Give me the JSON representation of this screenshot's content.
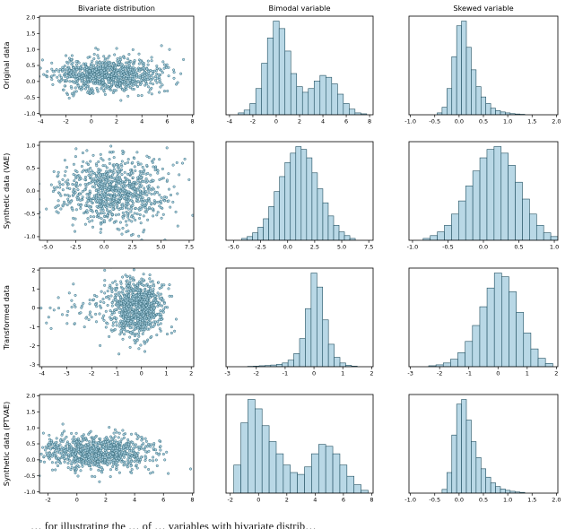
{
  "figure": {
    "caption_fragment": "… for illustrating the … of … variables with bivariate distrib…"
  },
  "chart_data": {
    "type": "subplot_grid",
    "grid": {
      "rows": 4,
      "cols": 3
    },
    "row_labels": [
      "Original data",
      "Synthetic data (VAE)",
      "Transformed data",
      "Synthetic data (PTVAE)"
    ],
    "col_titles": [
      "Bivariate distribution",
      "Bimodal variable",
      "Skewed variable"
    ],
    "palette": {
      "marker_fill": "#a9cfdf",
      "marker_edge": "#2f6475",
      "bar_fill": "#b9d8e6",
      "bar_edge": "#1f4e5f",
      "frame": "#000000"
    },
    "subplots": [
      {
        "name": "original-bivariate",
        "row": 0,
        "col": 0,
        "type": "scatter",
        "xlim": [
          -4.1,
          8.1
        ],
        "ylim": [
          -1.04,
          2.04
        ],
        "xtick_labels": [
          "-4",
          "-2",
          "0",
          "2",
          "4",
          "6",
          "8"
        ],
        "ytick_labels": [
          "-1.0",
          "-0.5",
          "0.0",
          "0.5",
          "1.0",
          "1.5",
          "2.0"
        ],
        "clusters": [
          {
            "cx": 1.2,
            "cy": 0.22,
            "sx": 2.1,
            "sy": 0.26,
            "n": 900
          }
        ],
        "seed": 11
      },
      {
        "name": "original-bimodal",
        "row": 0,
        "col": 1,
        "type": "hist",
        "xlim": [
          -4.3,
          8.3
        ],
        "xtick_labels": [
          "-4",
          "-2",
          "0",
          "2",
          "4",
          "6",
          "8"
        ],
        "bins": {
          "start": -3.25,
          "width": 0.5
        },
        "rel_heights": [
          0.02,
          0.05,
          0.12,
          0.28,
          0.55,
          0.82,
          1.0,
          0.92,
          0.68,
          0.44,
          0.3,
          0.24,
          0.28,
          0.36,
          0.42,
          0.4,
          0.33,
          0.22,
          0.12,
          0.06,
          0.02,
          0.01
        ]
      },
      {
        "name": "original-skewed",
        "row": 0,
        "col": 2,
        "type": "hist",
        "xlim": [
          -1.03,
          2.03
        ],
        "xtick_labels": [
          "-1.0",
          "-0.5",
          "0.0",
          "0.5",
          "1.0",
          "1.5",
          "2.0"
        ],
        "bins": {
          "start": -0.45,
          "width": 0.1
        },
        "rel_heights": [
          0.02,
          0.08,
          0.28,
          0.62,
          0.95,
          1.0,
          0.72,
          0.48,
          0.3,
          0.19,
          0.12,
          0.07,
          0.045,
          0.03,
          0.02,
          0.012,
          0.008,
          0.005
        ]
      },
      {
        "name": "vae-bivariate",
        "row": 1,
        "col": 0,
        "type": "scatter",
        "xlim": [
          -5.7,
          7.9
        ],
        "ylim": [
          -1.08,
          1.08
        ],
        "xtick_labels": [
          "-5.0",
          "-2.5",
          "0.0",
          "2.5",
          "5.0",
          "7.5"
        ],
        "ytick_labels": [
          "-1.0",
          "-0.5",
          "0.0",
          "0.5",
          "1.0"
        ],
        "clusters": [
          {
            "cx": 1.0,
            "cy": 0.0,
            "sx": 2.2,
            "sy": 0.36,
            "n": 900
          }
        ],
        "seed": 12
      },
      {
        "name": "vae-bimodal",
        "row": 1,
        "col": 1,
        "type": "hist",
        "xlim": [
          -5.7,
          7.9
        ],
        "xtick_labels": [
          "-5.0",
          "-2.5",
          "0.0",
          "2.5",
          "5.0",
          "7.5"
        ],
        "bins": {
          "start": -4.25,
          "width": 0.5
        },
        "rel_heights": [
          0.02,
          0.04,
          0.08,
          0.14,
          0.23,
          0.36,
          0.52,
          0.68,
          0.83,
          0.93,
          1.0,
          0.97,
          0.88,
          0.72,
          0.55,
          0.4,
          0.26,
          0.16,
          0.09,
          0.05,
          0.02
        ]
      },
      {
        "name": "vae-skewed",
        "row": 1,
        "col": 2,
        "type": "hist",
        "xlim": [
          -1.05,
          1.05
        ],
        "xtick_labels": [
          "-1.0",
          "-0.5",
          "0.0",
          "0.5",
          "1.0"
        ],
        "bins": {
          "start": -0.85,
          "width": 0.1
        },
        "rel_heights": [
          0.02,
          0.05,
          0.09,
          0.16,
          0.28,
          0.42,
          0.58,
          0.74,
          0.88,
          0.97,
          1.0,
          0.93,
          0.8,
          0.62,
          0.44,
          0.28,
          0.16,
          0.08,
          0.04
        ]
      },
      {
        "name": "transformed-bivariate",
        "row": 2,
        "col": 0,
        "type": "scatter",
        "xlim": [
          -4.1,
          2.1
        ],
        "ylim": [
          -3.1,
          2.1
        ],
        "xtick_labels": [
          "-4",
          "-3",
          "-2",
          "-1",
          "0",
          "1",
          "2"
        ],
        "ytick_labels": [
          "-3",
          "-2",
          "-1",
          "0",
          "1",
          "2"
        ],
        "clusters": [
          {
            "cx": -0.2,
            "cy": 0.0,
            "sx": 0.55,
            "sy": 0.75,
            "n": 820
          },
          {
            "cx": -2.2,
            "cy": -0.1,
            "sx": 0.9,
            "sy": 0.5,
            "n": 55
          }
        ],
        "seed": 13
      },
      {
        "name": "transformed-bimodal",
        "row": 2,
        "col": 1,
        "type": "hist",
        "xlim": [
          -3.05,
          2.05
        ],
        "xtick_labels": [
          "-3",
          "-2",
          "-1",
          "0",
          "1",
          "2"
        ],
        "bins": {
          "start": -2.3,
          "width": 0.2
        },
        "rel_heights": [
          0.004,
          0.006,
          0.01,
          0.013,
          0.018,
          0.025,
          0.04,
          0.07,
          0.14,
          0.3,
          0.62,
          1.0,
          0.85,
          0.5,
          0.24,
          0.1,
          0.04,
          0.015,
          0.006
        ]
      },
      {
        "name": "transformed-skewed",
        "row": 2,
        "col": 2,
        "type": "hist",
        "xlim": [
          -3.05,
          2.05
        ],
        "xtick_labels": [
          "-3",
          "-2",
          "-1",
          "0",
          "1",
          "2"
        ],
        "bins": {
          "start": -2.375,
          "width": 0.25
        },
        "rel_heights": [
          0.01,
          0.02,
          0.04,
          0.08,
          0.15,
          0.27,
          0.44,
          0.64,
          0.84,
          1.0,
          0.96,
          0.8,
          0.58,
          0.36,
          0.19,
          0.09,
          0.035
        ]
      },
      {
        "name": "ptvae-bivariate",
        "row": 3,
        "col": 0,
        "type": "scatter",
        "xlim": [
          -2.6,
          8.1
        ],
        "ylim": [
          -1.04,
          2.04
        ],
        "xtick_labels": [
          "-2",
          "0",
          "2",
          "4",
          "6",
          "8"
        ],
        "ytick_labels": [
          "-1.0",
          "-0.5",
          "0.0",
          "0.5",
          "1.0",
          "1.5",
          "2.0"
        ],
        "clusters": [
          {
            "cx": 1.4,
            "cy": 0.22,
            "sx": 2.0,
            "sy": 0.27,
            "n": 900
          }
        ],
        "seed": 14
      },
      {
        "name": "ptvae-bimodal",
        "row": 3,
        "col": 1,
        "type": "hist",
        "xlim": [
          -2.3,
          8.1
        ],
        "xtick_labels": [
          "-2",
          "0",
          "2",
          "4",
          "6",
          "8"
        ],
        "bins": {
          "start": -1.75,
          "width": 0.5
        },
        "rel_heights": [
          0.3,
          0.75,
          1.0,
          0.9,
          0.72,
          0.55,
          0.42,
          0.3,
          0.22,
          0.2,
          0.28,
          0.42,
          0.52,
          0.5,
          0.42,
          0.3,
          0.18,
          0.09,
          0.03
        ]
      },
      {
        "name": "ptvae-skewed",
        "row": 3,
        "col": 2,
        "type": "hist",
        "xlim": [
          -1.03,
          2.03
        ],
        "xtick_labels": [
          "-1.0",
          "-0.5",
          "0.0",
          "0.5",
          "1.0",
          "1.5",
          "2.0"
        ],
        "bins": {
          "start": -0.35,
          "width": 0.1
        },
        "rel_heights": [
          0.04,
          0.22,
          0.62,
          0.95,
          1.0,
          0.78,
          0.55,
          0.38,
          0.26,
          0.17,
          0.11,
          0.07,
          0.045,
          0.03,
          0.02,
          0.012,
          0.008
        ]
      }
    ]
  }
}
